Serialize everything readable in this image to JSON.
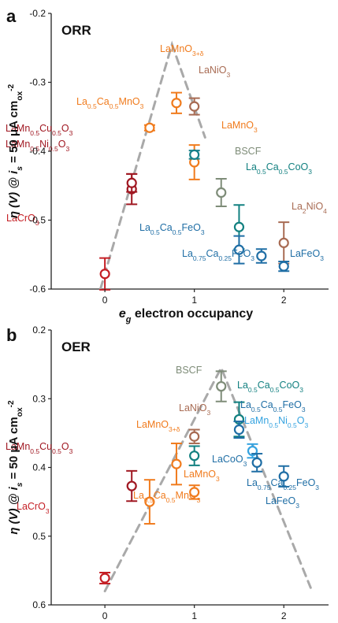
{
  "chart_data": [
    {
      "panel_label": "a",
      "title": "ORR",
      "type": "scatter",
      "xlabel": {
        "main": "e",
        "sub": "g",
        "rest": " electron occupancy"
      },
      "ylabel": {
        "main": "η (V) @ i",
        "sub": "s",
        "rest": " = 50 μA cm",
        "subox": "ox",
        "sup": "-2"
      },
      "xlim": [
        -0.6,
        2.5
      ],
      "ylim": [
        -0.6,
        -0.2
      ],
      "y_inverted": false,
      "xticks": [
        "0",
        "1",
        "2"
      ],
      "yticks": [
        "-0.2",
        "-0.3",
        "-0.4",
        "-0.5",
        "-0.6"
      ],
      "trend_line": [
        [
          -0.05,
          -0.6
        ],
        [
          0.75,
          -0.245
        ],
        [
          1.12,
          -0.38
        ]
      ],
      "points": [
        {
          "x": 0.0,
          "y": -0.578,
          "err": 0.023,
          "color": "#c41e24",
          "label": [
            [
              "LaCrO",
              ""
            ],
            [
              "3",
              "sub"
            ]
          ]
        },
        {
          "x": 0.3,
          "y": -0.455,
          "err": 0.022,
          "color": "#a01822",
          "label": [
            [
              "LaMn",
              ""
            ],
            [
              "0.5",
              "sub"
            ],
            [
              "Cu",
              ""
            ],
            [
              "0.5",
              "sub"
            ],
            [
              "O",
              ""
            ],
            [
              "3",
              "sub"
            ]
          ]
        },
        {
          "x": 0.3,
          "y": -0.446,
          "err": 0.013,
          "color": "#a01822",
          "label": [
            [
              "LaMn",
              ""
            ],
            [
              "0.5",
              "sub"
            ],
            [
              "Ni",
              ""
            ],
            [
              "0.5",
              "sub"
            ],
            [
              "O",
              ""
            ],
            [
              "3",
              "sub"
            ]
          ]
        },
        {
          "x": 0.5,
          "y": -0.366,
          "err": 0.004,
          "color": "#f07b1d",
          "label": [
            [
              "La",
              ""
            ],
            [
              "0.5",
              "sub"
            ],
            [
              "Ca",
              ""
            ],
            [
              "0.5",
              "sub"
            ],
            [
              "MnO",
              ""
            ],
            [
              "3",
              "sub"
            ]
          ]
        },
        {
          "x": 0.8,
          "y": -0.33,
          "err": 0.015,
          "color": "#f07b1d",
          "label": [
            [
              "LaMnO",
              ""
            ],
            [
              "3+δ",
              "sub"
            ]
          ]
        },
        {
          "x": 1.0,
          "y": -0.335,
          "err": 0.012,
          "color": "#a86b53",
          "label": [
            [
              "LaNiO",
              ""
            ],
            [
              "3",
              "sub"
            ]
          ]
        },
        {
          "x": 1.0,
          "y": -0.416,
          "err": 0.025,
          "color": "#f07b1d",
          "label": [
            [
              "LaMnO",
              ""
            ],
            [
              "3",
              "sub"
            ]
          ]
        },
        {
          "x": 1.0,
          "y": -0.405,
          "err": 0.006,
          "color": "#17808a",
          "label": []
        },
        {
          "x": 1.3,
          "y": -0.46,
          "err": 0.02,
          "color": "#7e8c78",
          "label": [
            [
              "BSCF",
              ""
            ]
          ]
        },
        {
          "x": 1.5,
          "y": -0.51,
          "err": 0.032,
          "color": "#128080",
          "label": [
            [
              "La",
              ""
            ],
            [
              "0.5",
              "sub"
            ],
            [
              "Ca",
              ""
            ],
            [
              "0.5",
              "sub"
            ],
            [
              "CoO",
              ""
            ],
            [
              "3",
              "sub"
            ]
          ]
        },
        {
          "x": 1.5,
          "y": -0.543,
          "err": 0.02,
          "color": "#1f6ea5",
          "label": [
            [
              "La",
              ""
            ],
            [
              "0.5",
              "sub"
            ],
            [
              "Ca",
              ""
            ],
            [
              "0.5",
              "sub"
            ],
            [
              "FeO",
              ""
            ],
            [
              "3",
              "sub"
            ]
          ]
        },
        {
          "x": 1.75,
          "y": -0.552,
          "err": 0.01,
          "color": "#1f6ea5",
          "label": [
            [
              "La",
              ""
            ],
            [
              "0.75",
              "sub"
            ],
            [
              "Ca",
              ""
            ],
            [
              "0.25",
              "sub"
            ],
            [
              "FeO",
              ""
            ],
            [
              "3",
              "sub"
            ]
          ]
        },
        {
          "x": 2.0,
          "y": -0.533,
          "err": 0.03,
          "color": "#a86b53",
          "label": [
            [
              "La",
              ""
            ],
            [
              "2",
              "sub"
            ],
            [
              "NiO",
              ""
            ],
            [
              "4",
              "sub"
            ]
          ]
        },
        {
          "x": 2.0,
          "y": -0.567,
          "err": 0.007,
          "color": "#1f6ea5",
          "label": [
            [
              "LaFeO",
              ""
            ],
            [
              "3",
              "sub"
            ]
          ]
        }
      ]
    },
    {
      "panel_label": "b",
      "title": "OER",
      "type": "scatter",
      "xlabel": {
        "main": "e",
        "sub": "g",
        "rest": " electron occupancy"
      },
      "ylabel": {
        "main": "η (V) @ i",
        "sub": "s",
        "rest": " = 50 μA cm",
        "subox": "ox",
        "sup": "-2"
      },
      "xlim": [
        -0.6,
        2.5
      ],
      "ylim": [
        0.6,
        0.2
      ],
      "y_inverted": true,
      "xticks": [
        "0",
        "1",
        "2"
      ],
      "yticks": [
        "0.2",
        "0.3",
        "0.4",
        "0.5",
        "0.6"
      ],
      "trend_line": [
        [
          0.0,
          0.58
        ],
        [
          1.3,
          0.255
        ],
        [
          2.3,
          0.575
        ]
      ],
      "points": [
        {
          "x": 0.0,
          "y": 0.561,
          "err": 0.008,
          "color": "#c41e24",
          "label": [
            [
              "LaCrO",
              ""
            ],
            [
              "3",
              "sub"
            ]
          ]
        },
        {
          "x": 0.3,
          "y": 0.427,
          "err": 0.022,
          "color": "#a01822",
          "label": [
            [
              "LaMn",
              ""
            ],
            [
              "0.5",
              "sub"
            ],
            [
              "Cu",
              ""
            ],
            [
              "0.5",
              "sub"
            ],
            [
              "O",
              ""
            ],
            [
              "3",
              "sub"
            ]
          ]
        },
        {
          "x": 0.5,
          "y": 0.45,
          "err": 0.032,
          "color": "#f07b1d",
          "label": [
            [
              "La",
              ""
            ],
            [
              "0.5",
              "sub"
            ],
            [
              "Ca",
              ""
            ],
            [
              "0.5",
              "sub"
            ],
            [
              "MnO",
              ""
            ],
            [
              "3",
              "sub"
            ]
          ]
        },
        {
          "x": 0.8,
          "y": 0.395,
          "err": 0.03,
          "color": "#f07b1d",
          "label": [
            [
              "LaMnO",
              ""
            ],
            [
              "3+δ",
              "sub"
            ]
          ]
        },
        {
          "x": 1.0,
          "y": 0.355,
          "err": 0.01,
          "color": "#a86b53",
          "label": [
            [
              "LaNiO",
              ""
            ],
            [
              "3",
              "sub"
            ]
          ]
        },
        {
          "x": 1.0,
          "y": 0.383,
          "err": 0.014,
          "color": "#128080",
          "label": []
        },
        {
          "x": 1.0,
          "y": 0.436,
          "err": 0.01,
          "color": "#f07b1d",
          "label": [
            [
              "LaMnO",
              ""
            ],
            [
              "3",
              "sub"
            ]
          ]
        },
        {
          "x": 1.3,
          "y": 0.282,
          "err": 0.022,
          "color": "#7e8c78",
          "label": [
            [
              "BSCF",
              ""
            ]
          ]
        },
        {
          "x": 1.5,
          "y": 0.33,
          "err": 0.025,
          "color": "#128080",
          "label": [
            [
              "La",
              ""
            ],
            [
              "0.5",
              "sub"
            ],
            [
              "Ca",
              ""
            ],
            [
              "0.5",
              "sub"
            ],
            [
              "CoO",
              ""
            ],
            [
              "3",
              "sub"
            ]
          ]
        },
        {
          "x": 1.5,
          "y": 0.345,
          "err": 0.012,
          "color": "#1f6ea5",
          "label": [
            [
              "La",
              ""
            ],
            [
              "0.5",
              "sub"
            ],
            [
              "Ca",
              ""
            ],
            [
              "0.5",
              "sub"
            ],
            [
              "FeO",
              ""
            ],
            [
              "3",
              "sub"
            ]
          ]
        },
        {
          "x": 1.65,
          "y": 0.376,
          "err": 0.01,
          "color": "#35a3e0",
          "label": [
            [
              "LaMn",
              ""
            ],
            [
              "0.5",
              "sub"
            ],
            [
              "Ni",
              ""
            ],
            [
              "0.5",
              "sub"
            ],
            [
              "O",
              ""
            ],
            [
              "3",
              "sub"
            ]
          ]
        },
        {
          "x": 1.7,
          "y": 0.393,
          "err": 0.013,
          "color": "#1f6ea5",
          "label": [
            [
              "LaCoO",
              ""
            ],
            [
              "3",
              "sub"
            ]
          ]
        },
        {
          "x": 2.0,
          "y": 0.413,
          "err": 0.015,
          "color": "#1f6ea5",
          "label": [
            [
              "La",
              ""
            ],
            [
              "0.75",
              "sub"
            ],
            [
              "Ca",
              ""
            ],
            [
              "0.25",
              "sub"
            ],
            [
              "FeO",
              ""
            ],
            [
              "3",
              "sub"
            ]
          ]
        },
        {
          "x": 2.0,
          "y": 0.413,
          "err": 0.0,
          "color": "#1f6ea5",
          "label": [
            [
              "LaFeO",
              ""
            ],
            [
              "3",
              "sub"
            ]
          ]
        }
      ]
    }
  ]
}
